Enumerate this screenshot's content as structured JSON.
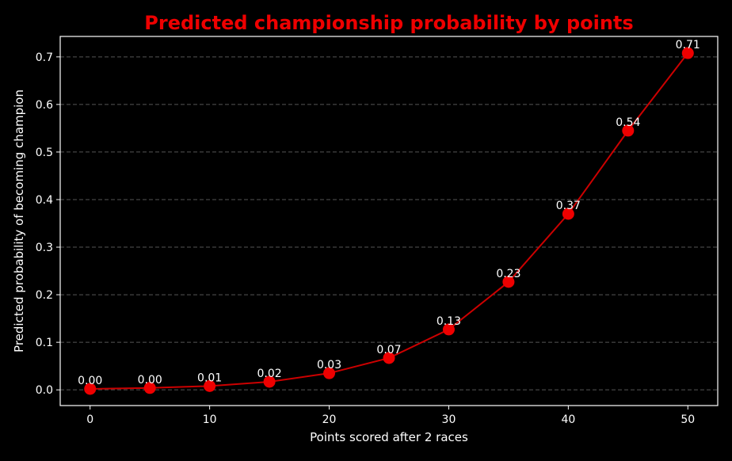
{
  "chart_data": {
    "type": "line",
    "title": "Predicted championship probability by points",
    "xlabel": "Points scored after 2 races",
    "ylabel": "Predicted probability of becoming champion",
    "x": [
      0,
      5,
      10,
      15,
      20,
      25,
      30,
      35,
      40,
      45,
      50
    ],
    "values": [
      0.002,
      0.004,
      0.008,
      0.017,
      0.035,
      0.067,
      0.127,
      0.227,
      0.37,
      0.545,
      0.708
    ],
    "data_labels": [
      "0.00",
      "0.00",
      "0.01",
      "0.02",
      "0.03",
      "0.07",
      "0.13",
      "0.23",
      "0.37",
      "0.54",
      "0.71"
    ],
    "xticks": [
      0,
      10,
      20,
      30,
      40,
      50
    ],
    "xtick_labels": [
      "0",
      "10",
      "20",
      "30",
      "40",
      "50"
    ],
    "yticks": [
      0.0,
      0.1,
      0.2,
      0.3,
      0.4,
      0.5,
      0.6,
      0.7
    ],
    "ytick_labels": [
      "0.0",
      "0.1",
      "0.2",
      "0.3",
      "0.4",
      "0.5",
      "0.6",
      "0.7"
    ],
    "xlim": [
      -2.5,
      52.5
    ],
    "ylim": [
      -0.033,
      0.743
    ],
    "grid": "horizontal dashed",
    "colors": {
      "background": "#000000",
      "line": "#cc0000",
      "marker": "#ee0000",
      "title": "#ee0000",
      "text": "#ffffff",
      "grid": "#555555"
    }
  }
}
